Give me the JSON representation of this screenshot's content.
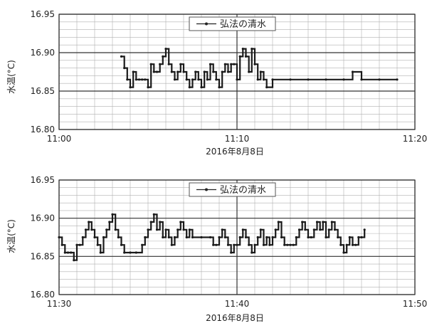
{
  "chart_data": [
    {
      "type": "line",
      "ylabel": "水温(°C)",
      "xlabel": "2016年8月8日",
      "ylim": [
        16.8,
        16.95
      ],
      "yticks": [
        "16.95",
        "16.90",
        "16.85",
        "16.80"
      ],
      "xlim": [
        "11:00",
        "11:20"
      ],
      "xticks": [
        "11:00",
        "11:10",
        "11:20"
      ],
      "grid": true,
      "legend_position": "top-right",
      "series": [
        {
          "name": "弘法の清水",
          "x": [
            "11:03:30",
            "11:03:40",
            "11:03:50",
            "11:04:00",
            "11:04:10",
            "11:04:20",
            "11:04:30",
            "11:04:40",
            "11:04:50",
            "11:05:00",
            "11:05:10",
            "11:05:20",
            "11:05:30",
            "11:05:40",
            "11:05:50",
            "11:06:00",
            "11:06:10",
            "11:06:20",
            "11:06:30",
            "11:06:40",
            "11:06:50",
            "11:07:00",
            "11:07:10",
            "11:07:20",
            "11:07:30",
            "11:07:40",
            "11:07:50",
            "11:08:00",
            "11:08:10",
            "11:08:20",
            "11:08:30",
            "11:08:40",
            "11:08:50",
            "11:09:00",
            "11:09:10",
            "11:09:20",
            "11:09:30",
            "11:09:40",
            "11:09:50",
            "11:10:00",
            "11:10:10",
            "11:10:20",
            "11:10:30",
            "11:10:40",
            "11:10:50",
            "11:11:00",
            "11:11:10",
            "11:11:20",
            "11:11:30",
            "11:11:40",
            "11:12:00",
            "11:13:00",
            "11:14:00",
            "11:15:00",
            "11:16:00",
            "11:16:30",
            "11:17:00",
            "11:18:00",
            "11:19:00"
          ],
          "y": [
            16.895,
            16.88,
            16.865,
            16.855,
            16.875,
            16.865,
            16.865,
            16.865,
            16.865,
            16.855,
            16.885,
            16.875,
            16.875,
            16.885,
            16.895,
            16.905,
            16.885,
            16.875,
            16.865,
            16.875,
            16.885,
            16.875,
            16.865,
            16.855,
            16.865,
            16.875,
            16.865,
            16.855,
            16.875,
            16.865,
            16.885,
            16.875,
            16.865,
            16.855,
            16.875,
            16.885,
            16.875,
            16.885,
            16.885,
            16.865,
            16.895,
            16.905,
            16.895,
            16.875,
            16.905,
            16.885,
            16.865,
            16.875,
            16.865,
            16.855,
            16.865,
            16.865,
            16.865,
            16.865,
            16.865,
            16.875,
            16.865,
            16.865,
            16.865
          ]
        }
      ]
    },
    {
      "type": "line",
      "ylabel": "水温(°C)",
      "xlabel": "2016年8月8日",
      "ylim": [
        16.8,
        16.95
      ],
      "yticks": [
        "16.95",
        "16.90",
        "16.85",
        "16.80"
      ],
      "xlim": [
        "11:30",
        "11:50"
      ],
      "xticks": [
        "11:30",
        "11:40",
        "11:50"
      ],
      "grid": true,
      "legend_position": "top-right",
      "series": [
        {
          "name": "弘法の清水",
          "x": [
            "11:30:00",
            "11:30:10",
            "11:30:20",
            "11:30:30",
            "11:30:40",
            "11:30:50",
            "11:31:00",
            "11:31:10",
            "11:31:20",
            "11:31:30",
            "11:31:40",
            "11:31:50",
            "11:32:00",
            "11:32:10",
            "11:32:20",
            "11:32:30",
            "11:32:40",
            "11:32:50",
            "11:33:00",
            "11:33:10",
            "11:33:20",
            "11:33:30",
            "11:33:40",
            "11:34:00",
            "11:34:20",
            "11:34:40",
            "11:34:50",
            "11:35:00",
            "11:35:10",
            "11:35:20",
            "11:35:30",
            "11:35:40",
            "11:35:50",
            "11:36:00",
            "11:36:10",
            "11:36:20",
            "11:36:30",
            "11:36:40",
            "11:36:50",
            "11:37:00",
            "11:37:10",
            "11:37:20",
            "11:37:30",
            "11:38:00",
            "11:38:30",
            "11:38:40",
            "11:38:50",
            "11:39:00",
            "11:39:10",
            "11:39:20",
            "11:39:30",
            "11:39:40",
            "11:39:50",
            "11:40:00",
            "11:40:10",
            "11:40:20",
            "11:40:30",
            "11:40:40",
            "11:40:50",
            "11:41:00",
            "11:41:10",
            "11:41:20",
            "11:41:30",
            "11:41:40",
            "11:41:50",
            "11:42:00",
            "11:42:10",
            "11:42:20",
            "11:42:30",
            "11:42:40",
            "11:42:50",
            "11:43:00",
            "11:43:10",
            "11:43:20",
            "11:43:30",
            "11:43:40",
            "11:43:50",
            "11:44:00",
            "11:44:10",
            "11:44:20",
            "11:44:30",
            "11:44:40",
            "11:44:50",
            "11:45:00",
            "11:45:10",
            "11:45:20",
            "11:45:30",
            "11:45:40",
            "11:45:50",
            "11:46:00",
            "11:46:10",
            "11:46:20",
            "11:46:30",
            "11:46:40",
            "11:46:50",
            "11:47:00",
            "11:47:10"
          ],
          "y": [
            16.875,
            16.865,
            16.855,
            16.855,
            16.855,
            16.845,
            16.865,
            16.865,
            16.875,
            16.885,
            16.895,
            16.885,
            16.875,
            16.865,
            16.855,
            16.875,
            16.885,
            16.895,
            16.905,
            16.885,
            16.875,
            16.865,
            16.855,
            16.855,
            16.855,
            16.865,
            16.875,
            16.885,
            16.895,
            16.905,
            16.885,
            16.895,
            16.875,
            16.885,
            16.875,
            16.865,
            16.875,
            16.885,
            16.895,
            16.885,
            16.875,
            16.885,
            16.875,
            16.875,
            16.875,
            16.865,
            16.865,
            16.875,
            16.885,
            16.875,
            16.865,
            16.855,
            16.865,
            16.865,
            16.875,
            16.885,
            16.875,
            16.865,
            16.855,
            16.865,
            16.875,
            16.885,
            16.865,
            16.875,
            16.865,
            16.875,
            16.885,
            16.895,
            16.875,
            16.865,
            16.865,
            16.865,
            16.865,
            16.875,
            16.885,
            16.895,
            16.885,
            16.875,
            16.875,
            16.885,
            16.895,
            16.885,
            16.895,
            16.875,
            16.885,
            16.895,
            16.885,
            16.875,
            16.865,
            16.855,
            16.865,
            16.875,
            16.865,
            16.865,
            16.875,
            16.875,
            16.885
          ]
        }
      ]
    }
  ]
}
